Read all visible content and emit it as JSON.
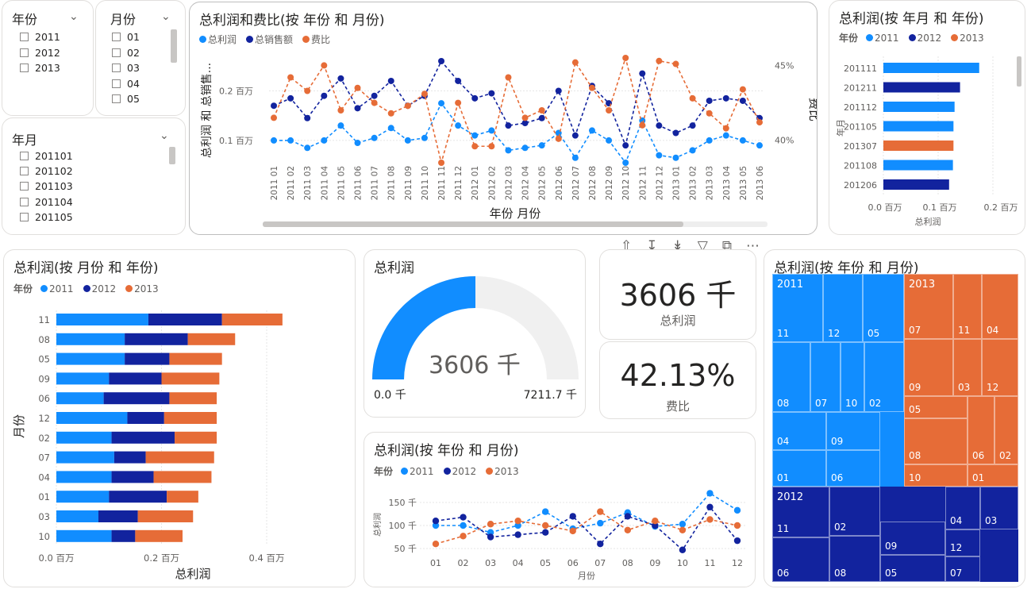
{
  "slicers": {
    "year": {
      "header": "年份",
      "items": [
        "2011",
        "2012",
        "2013"
      ]
    },
    "month": {
      "header": "月份",
      "items": [
        "01",
        "02",
        "03",
        "04",
        "05"
      ]
    },
    "yearmonth": {
      "header": "年月",
      "items": [
        "201101",
        "201102",
        "201103",
        "201104",
        "201105"
      ]
    }
  },
  "colors": {
    "y2011": "#118DFF",
    "y2012": "#12239E",
    "y2013": "#E66C37"
  },
  "main_line": {
    "title": "总利润和费比(按 年份 和 月份)",
    "legend": [
      "总利润",
      "总销售额",
      "费比"
    ],
    "ylabel": "总利润 和 总销售...",
    "y2label": "费比",
    "xlabel": "年份 月份",
    "yticks": [
      "0.2 百万",
      "0.1 百万"
    ],
    "y2ticks": [
      "45%",
      "40%"
    ]
  },
  "hbar_ym": {
    "title": "总利润(按 年月 和 年份)",
    "legend_title": "年份",
    "legend": [
      "2011",
      "2012",
      "2013"
    ],
    "ylabel": "年月",
    "xlabel": "总利润",
    "xticks": [
      "0.0 百万",
      "0.1 百万",
      "0.2 百万"
    ]
  },
  "hbar_month": {
    "title": "总利润(按 月份 和 年份)",
    "legend_title": "年份",
    "legend": [
      "2011",
      "2012",
      "2013"
    ],
    "ylabel": "月份",
    "xlabel": "总利润",
    "xticks": [
      "0.0 百万",
      "0.2 百万",
      "0.4 百万"
    ]
  },
  "gauge": {
    "title": "总利润",
    "value": "3606 千",
    "min": "0.0 千",
    "max": "7211.7 千",
    "fraction": 0.5
  },
  "kpi1": {
    "value": "3606 千",
    "label": "总利润"
  },
  "kpi2": {
    "value": "42.13%",
    "label": "费比"
  },
  "line_small": {
    "title": "总利润(按 年份 和 月份)",
    "legend_title": "年份",
    "legend": [
      "2011",
      "2012",
      "2013"
    ],
    "ylabel": "总利润",
    "xlabel": "月份",
    "yticks": [
      "150 千",
      "100 千",
      "50 千"
    ]
  },
  "treemap": {
    "title": "总利润(按 年份 和 月份)",
    "groups": [
      {
        "year": "2011",
        "months": [
          "11",
          "12",
          "05",
          "08",
          "07",
          "10",
          "02",
          "04",
          "09",
          "01",
          "06"
        ]
      },
      {
        "year": "2013",
        "months": [
          "07",
          "11",
          "04",
          "09",
          "03",
          "12",
          "05",
          "08",
          "06",
          "02",
          "10",
          "01"
        ]
      },
      {
        "year": "2012",
        "months": [
          "11",
          "02",
          "04",
          "03",
          "09",
          "12",
          "06",
          "08",
          "05",
          "07"
        ]
      }
    ]
  },
  "chart_data": [
    {
      "type": "line",
      "title": "总利润和费比(按 年份 和 月份)",
      "xlabel": "年份 月份",
      "ylabel": "总利润 和 总销售...",
      "y2label": "费比",
      "x": [
        "2011 01",
        "2011 02",
        "2011 03",
        "2011 04",
        "2011 05",
        "2011 06",
        "2011 07",
        "2011 08",
        "2011 09",
        "2011 10",
        "2011 11",
        "2011 12",
        "2012 01",
        "2012 02",
        "2012 03",
        "2012 04",
        "2012 05",
        "2012 06",
        "2012 07",
        "2012 08",
        "2012 09",
        "2012 10",
        "2012 11",
        "2012 12",
        "2013 01",
        "2013 02",
        "2013 03",
        "2013 04",
        "2013 05",
        "2013 06"
      ],
      "series": [
        {
          "name": "总利润",
          "axis": "y",
          "values": [
            0.1,
            0.1,
            0.085,
            0.1,
            0.13,
            0.095,
            0.105,
            0.125,
            0.1,
            0.105,
            0.175,
            0.13,
            0.11,
            0.12,
            0.08,
            0.085,
            0.09,
            0.115,
            0.065,
            0.12,
            0.1,
            0.055,
            0.14,
            0.07,
            0.065,
            0.08,
            0.1,
            0.11,
            0.1,
            0.09
          ]
        },
        {
          "name": "总销售额",
          "axis": "y",
          "values": [
            0.17,
            0.185,
            0.145,
            0.19,
            0.225,
            0.165,
            0.19,
            0.22,
            0.17,
            0.19,
            0.26,
            0.22,
            0.185,
            0.195,
            0.13,
            0.135,
            0.145,
            0.2,
            0.11,
            0.21,
            0.175,
            0.09,
            0.235,
            0.13,
            0.115,
            0.13,
            0.18,
            0.185,
            0.18,
            0.145
          ]
        },
        {
          "name": "费比",
          "axis": "y2",
          "values": [
            41.5,
            44.2,
            43.3,
            45.0,
            42.0,
            43.5,
            42.5,
            41.8,
            42.3,
            43.1,
            38.5,
            42.5,
            39.6,
            39.6,
            44.2,
            41.5,
            42.0,
            40.1,
            45.2,
            43.5,
            42.0,
            45.5,
            41.0,
            45.3,
            45.1,
            42.8,
            41.8,
            40.8,
            43.4,
            41.2
          ]
        }
      ],
      "yticks": [
        0.1,
        0.2
      ],
      "y2ticks": [
        40,
        45
      ]
    },
    {
      "type": "bar",
      "orientation": "horizontal",
      "title": "总利润(按 年月 和 年份)",
      "categories": [
        "201111",
        "201211",
        "201112",
        "201105",
        "201307",
        "201108",
        "201206"
      ],
      "series_by_category": [
        "2011",
        "2012",
        "2011",
        "2011",
        "2013",
        "2011",
        "2012"
      ],
      "values": [
        0.175,
        0.14,
        0.13,
        0.128,
        0.128,
        0.127,
        0.12
      ],
      "xlabel": "总利润",
      "ylabel": "年月"
    },
    {
      "type": "bar",
      "orientation": "horizontal",
      "stacked": true,
      "title": "总利润(按 月份 和 年份)",
      "categories": [
        "11",
        "08",
        "05",
        "09",
        "06",
        "12",
        "02",
        "07",
        "04",
        "01",
        "03",
        "10"
      ],
      "series": [
        {
          "name": "2011",
          "values": [
            0.175,
            0.13,
            0.13,
            0.1,
            0.09,
            0.135,
            0.105,
            0.11,
            0.105,
            0.1,
            0.08,
            0.105
          ]
        },
        {
          "name": "2012",
          "values": [
            0.14,
            0.12,
            0.085,
            0.1,
            0.125,
            0.07,
            0.12,
            0.06,
            0.08,
            0.11,
            0.075,
            0.045
          ]
        },
        {
          "name": "2013",
          "values": [
            0.115,
            0.09,
            0.1,
            0.11,
            0.09,
            0.1,
            0.08,
            0.13,
            0.11,
            0.06,
            0.105,
            0.09
          ]
        }
      ],
      "xlabel": "总利润",
      "ylabel": "月份",
      "xlim": [
        0,
        0.45
      ]
    },
    {
      "type": "line",
      "title": "总利润(按 年份 和 月份)",
      "categories": [
        "01",
        "02",
        "03",
        "04",
        "05",
        "06",
        "07",
        "08",
        "09",
        "10",
        "11",
        "12"
      ],
      "series": [
        {
          "name": "2011",
          "values": [
            100,
            100,
            85,
            100,
            130,
            93,
            105,
            128,
            98,
            103,
            170,
            133
          ]
        },
        {
          "name": "2012",
          "values": [
            110,
            118,
            75,
            80,
            85,
            120,
            60,
            120,
            100,
            47,
            140,
            67
          ]
        },
        {
          "name": "2013",
          "values": [
            60,
            77,
            103,
            110,
            100,
            88,
            130,
            90,
            110,
            90,
            113,
            100
          ]
        }
      ],
      "xlabel": "月份",
      "ylabel": "总利润",
      "yticks": [
        50,
        100,
        150
      ]
    }
  ]
}
